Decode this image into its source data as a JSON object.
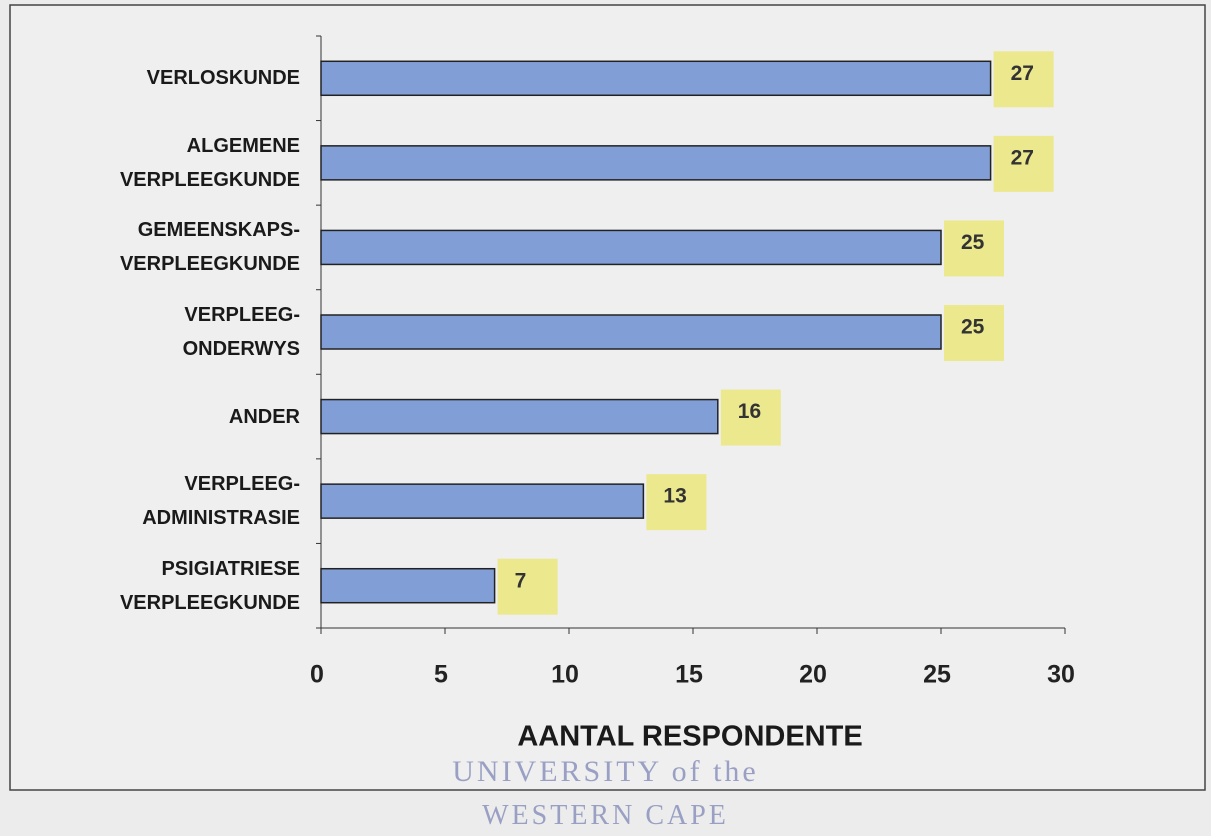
{
  "chart_data": {
    "type": "hbar",
    "categories": [
      "VERLOSKUNDE",
      "ALGEMENE\nVERPLEEGKUNDE",
      "GEMEENSKAPS-\nVERPLEEGKUNDE",
      "VERPLEEG-\nONDERWYS",
      "ANDER",
      "VERPLEEG-\nADMINISTRASIE",
      "PSIGIATRIESE\nVERPLEEGKUNDE"
    ],
    "values": [
      27,
      27,
      25,
      25,
      16,
      13,
      7
    ],
    "color": "#819fd6",
    "label_color": "#ece88e",
    "xlim": [
      0,
      30
    ],
    "xticks": [
      0,
      5,
      10,
      15,
      20,
      25,
      30
    ],
    "xlabel": "AANTAL RESPONDENTE",
    "grid": false,
    "watermark": [
      "UNIVERSITY of the",
      "WESTERN CAPE"
    ]
  }
}
